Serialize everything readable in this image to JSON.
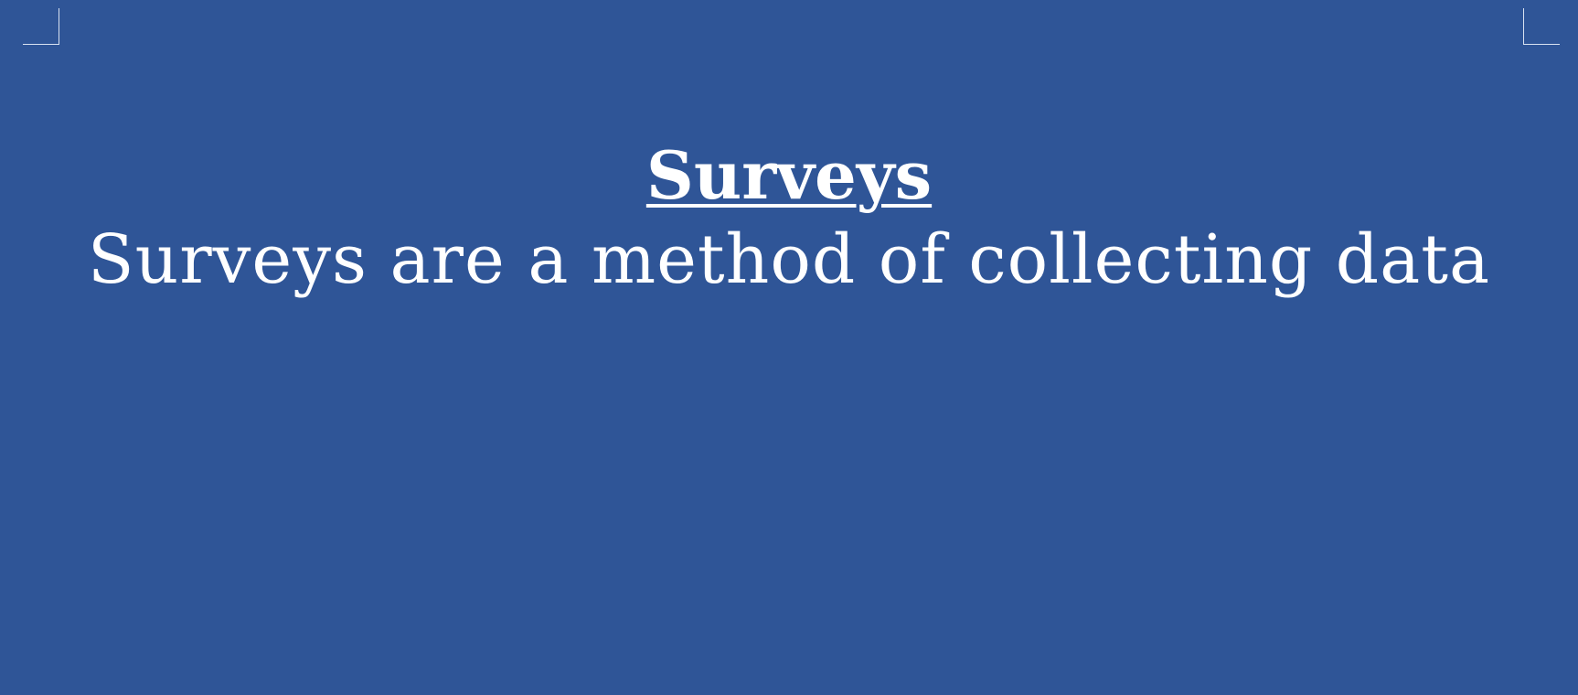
{
  "document": {
    "heading": "Surveys",
    "body": "Surveys are a method of collecting data"
  },
  "colors": {
    "background": "#2f5597",
    "text": "#ffffff",
    "crop_marks": "#d9e2f1"
  }
}
